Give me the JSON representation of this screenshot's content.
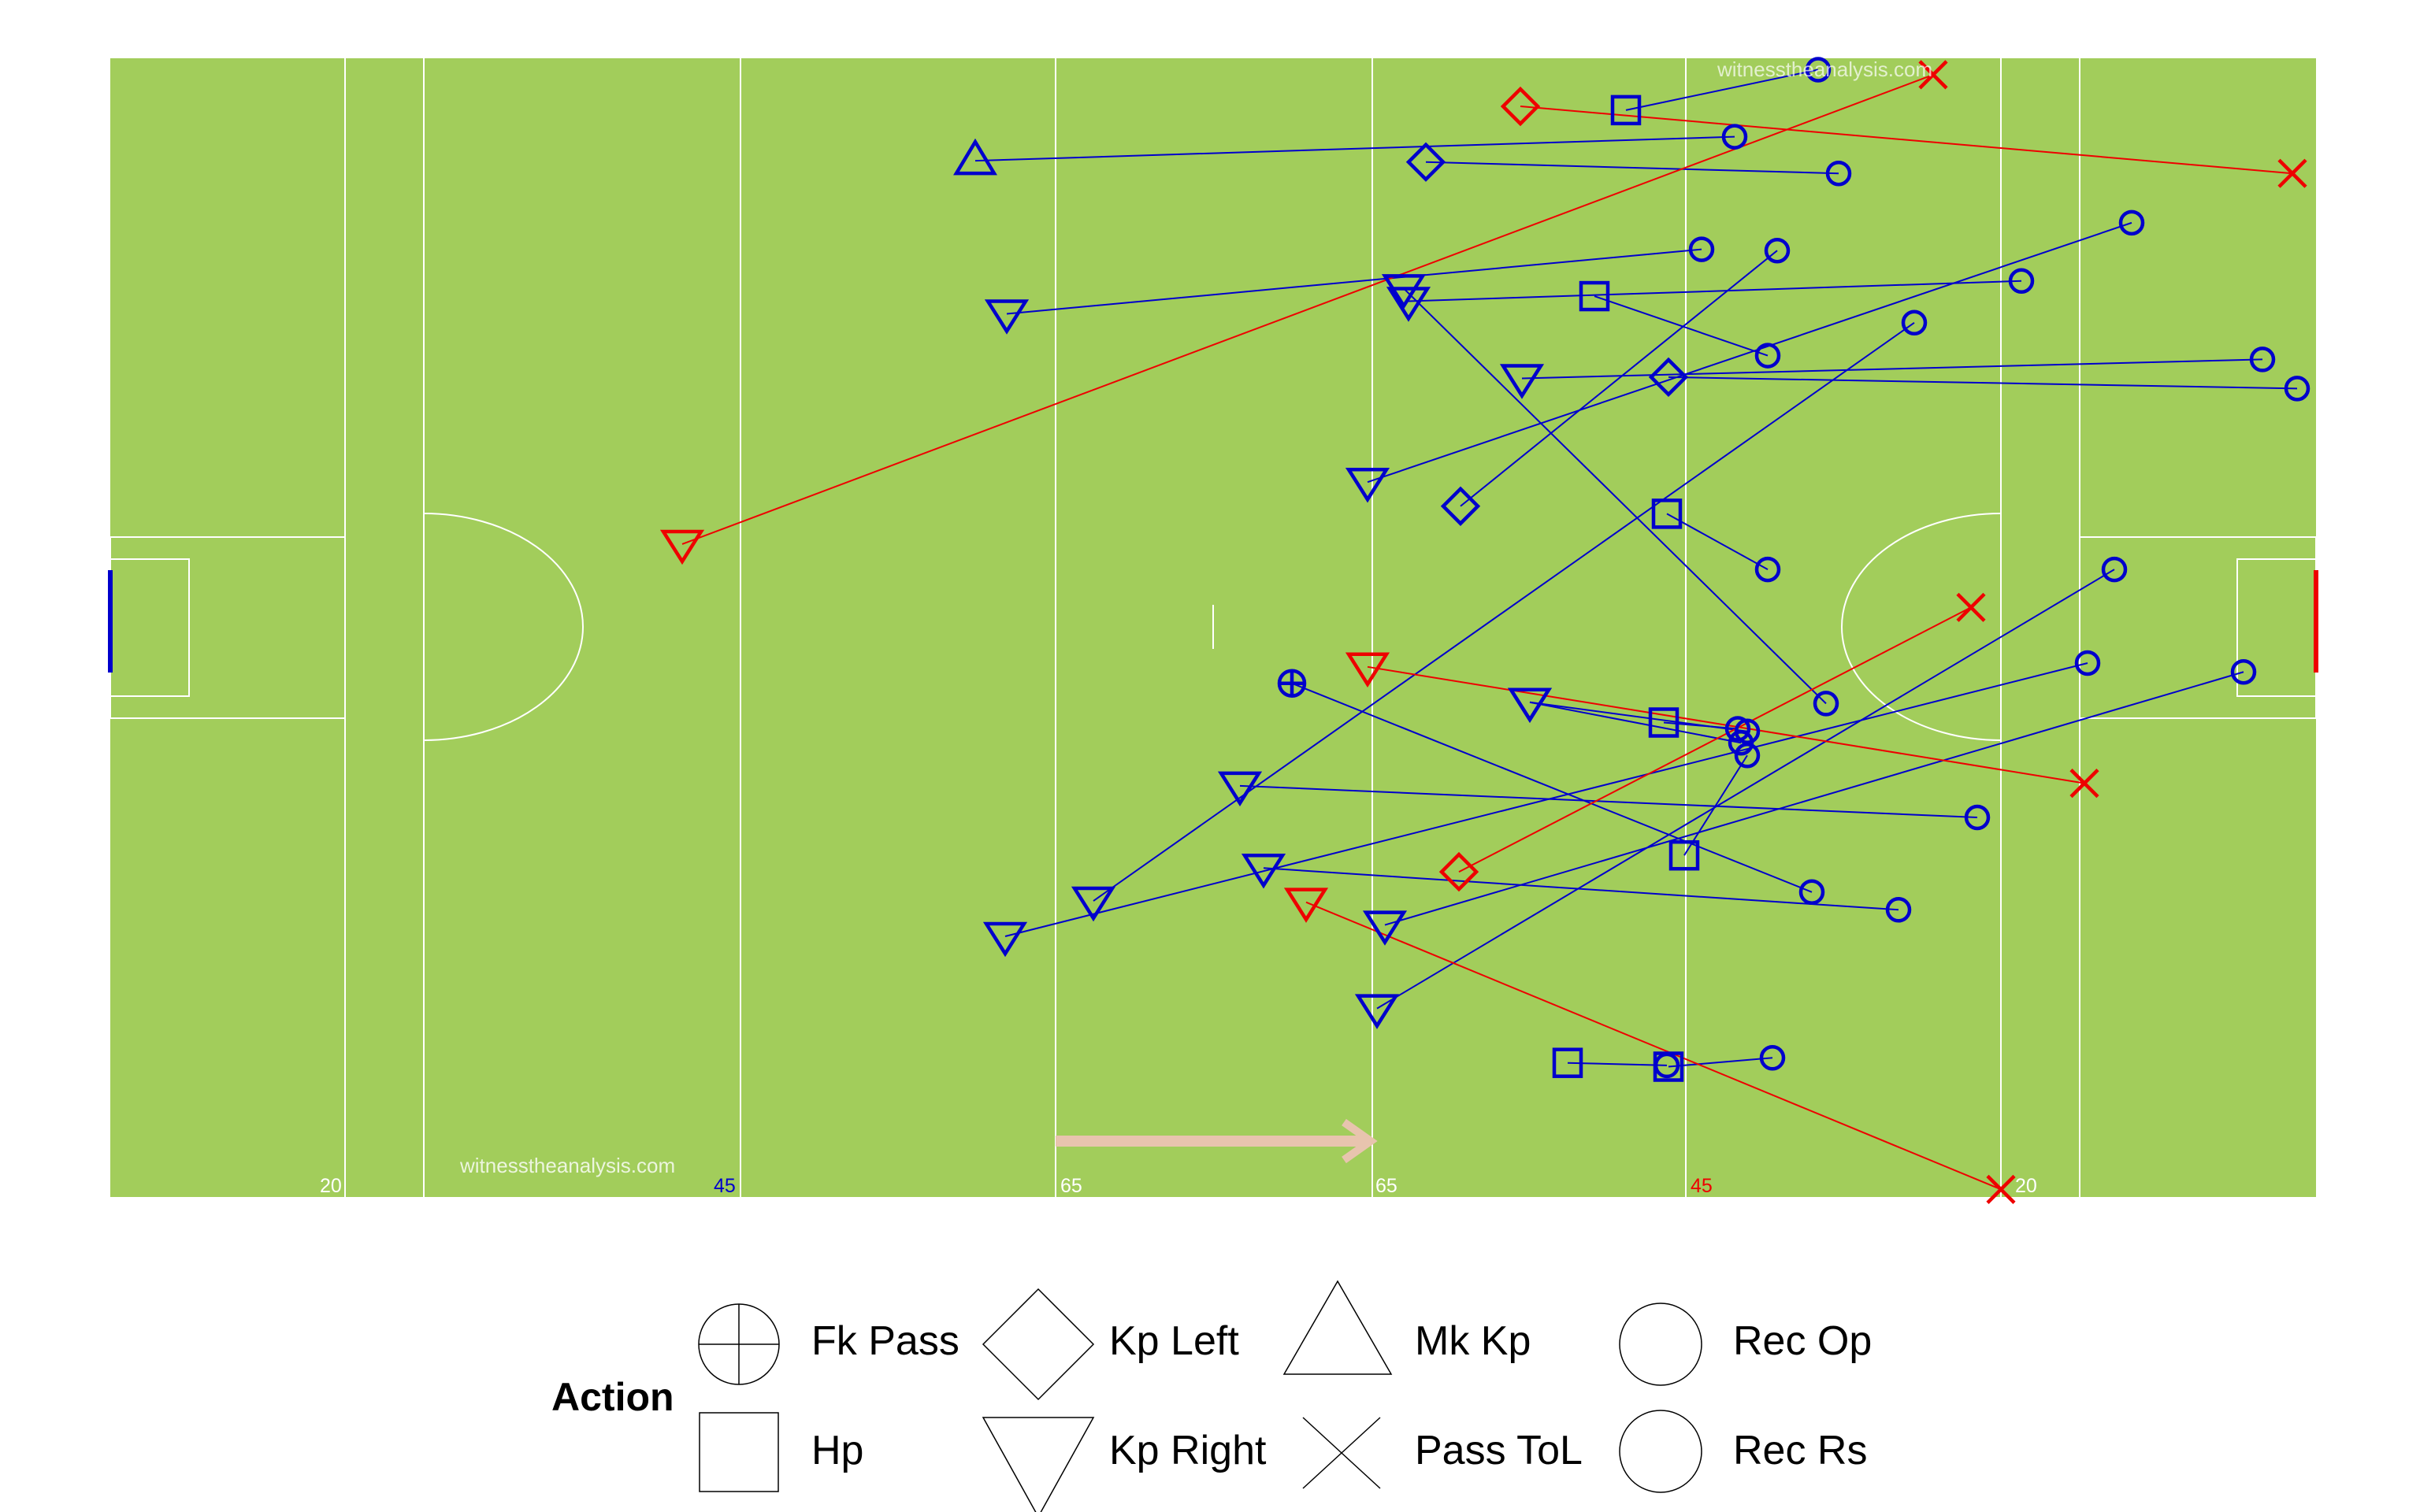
{
  "watermark": "witnesstheanalysis.com",
  "legend": {
    "title": "Action",
    "items": [
      {
        "key": "fk_pass",
        "label": "Fk Pass",
        "icon": "circle-plus-icon"
      },
      {
        "key": "hp",
        "label": "Hp",
        "icon": "square-icon"
      },
      {
        "key": "kp_left",
        "label": "Kp Left",
        "icon": "diamond-icon"
      },
      {
        "key": "kp_right",
        "label": "Kp Right",
        "icon": "triangle-down-icon"
      },
      {
        "key": "mk_kp",
        "label": "Mk Kp",
        "icon": "triangle-up-icon"
      },
      {
        "key": "pass_tol",
        "label": "Pass ToL",
        "icon": "cross-icon"
      },
      {
        "key": "rec_op",
        "label": "Rec Op",
        "icon": "circle-icon"
      },
      {
        "key": "rec_rs",
        "label": "Rec Rs",
        "icon": "circle-icon"
      }
    ]
  },
  "colors": {
    "pitch": "#a2cd5b",
    "team_blue": "#0000cc",
    "team_red": "#ee0000",
    "lines": "#ffffff",
    "arrow": "#e8c4ae"
  },
  "chart_data": {
    "type": "scatter",
    "title": "",
    "xlabel": "",
    "ylabel": "",
    "xlim": [
      0,
      140
    ],
    "ylim": [
      0,
      90
    ],
    "grid": false,
    "legend_position": "bottom",
    "pitch_labels": [
      {
        "x": 15,
        "text": "20",
        "color": "lines"
      },
      {
        "x": 40,
        "text": "45",
        "color": "team_blue"
      },
      {
        "x": 60,
        "text": "65",
        "color": "lines"
      },
      {
        "x": 80,
        "text": "65",
        "color": "lines"
      },
      {
        "x": 100,
        "text": "45",
        "color": "team_red"
      },
      {
        "x": 120,
        "text": "20",
        "color": "lines"
      }
    ],
    "direction_arrow": {
      "from": 60,
      "to": 80
    },
    "series": [
      {
        "team": "team_blue",
        "events": [
          {
            "start": "kp_right",
            "x1": 56.8,
            "y1": 20.6,
            "end": "rec_op",
            "x2": 125.5,
            "y2": 42.2
          },
          {
            "start": "kp_right",
            "x1": 62.4,
            "y1": 23.4,
            "end": "rec_op",
            "x2": 114.5,
            "y2": 69.1
          },
          {
            "start": "kp_right",
            "x1": 56.9,
            "y1": 69.8,
            "end": "rec_op",
            "x2": 101.0,
            "y2": 74.9
          },
          {
            "start": "kp_right",
            "x1": 73.2,
            "y1": 26.0,
            "end": "rec_op",
            "x2": 113.5,
            "y2": 22.7
          },
          {
            "start": "kp_right",
            "x1": 80.4,
            "y1": 14.9,
            "end": "rec_op",
            "x2": 127.2,
            "y2": 49.6
          },
          {
            "start": "kp_right",
            "x1": 82.4,
            "y1": 70.8,
            "end": "rec_op",
            "x2": 121.3,
            "y2": 72.4
          },
          {
            "start": "kp_right",
            "x1": 82.1,
            "y1": 71.8,
            "end": "rec_op",
            "x2": 108.9,
            "y2": 39.0
          },
          {
            "start": "kp_right",
            "x1": 89.6,
            "y1": 64.7,
            "end": "rec_op",
            "x2": 136.6,
            "y2": 66.2
          },
          {
            "start": "kp_right",
            "x1": 80.9,
            "y1": 21.5,
            "end": "rec_op",
            "x2": 135.4,
            "y2": 41.5
          },
          {
            "start": "kp_right",
            "x1": 71.7,
            "y1": 32.5,
            "end": "rec_op",
            "x2": 118.5,
            "y2": 30.0
          },
          {
            "start": "kp_right",
            "x1": 79.8,
            "y1": 56.5,
            "end": "rec_op",
            "x2": 128.3,
            "y2": 77.0
          },
          {
            "start": "mk_kp",
            "x1": 54.9,
            "y1": 81.9,
            "end": "rec_op",
            "x2": 103.1,
            "y2": 83.8
          },
          {
            "start": "kp_left",
            "x1": 83.5,
            "y1": 81.8,
            "end": "rec_op",
            "x2": 109.7,
            "y2": 80.9
          },
          {
            "start": "kp_left",
            "x1": 98.9,
            "y1": 64.8,
            "end": "rec_op",
            "x2": 138.8,
            "y2": 63.9
          },
          {
            "start": "kp_left",
            "x1": 85.7,
            "y1": 54.6,
            "end": "rec_op",
            "x2": 105.8,
            "y2": 74.8
          },
          {
            "start": "hp",
            "x1": 96.2,
            "y1": 85.9,
            "end": "rec_op",
            "x2": 108.4,
            "y2": 89.1
          },
          {
            "start": "hp",
            "x1": 94.2,
            "y1": 71.2,
            "end": "rec_op",
            "x2": 105.2,
            "y2": 66.5
          },
          {
            "start": "hp",
            "x1": 98.8,
            "y1": 54.0,
            "end": "rec_op",
            "x2": 105.2,
            "y2": 49.6
          },
          {
            "start": "hp",
            "x1": 98.6,
            "y1": 37.5,
            "end": "rec_op",
            "x2": 103.3,
            "y2": 37.0
          },
          {
            "start": "hp",
            "x1": 99.9,
            "y1": 27.0,
            "end": "rec_op",
            "x2": 103.9,
            "y2": 34.9
          },
          {
            "start": "hp",
            "x1": 92.5,
            "y1": 10.6,
            "end": "rec_op",
            "x2": 98.8,
            "y2": 10.4
          },
          {
            "start": "hp",
            "x1": 98.9,
            "y1": 10.3,
            "end": "rec_op",
            "x2": 105.5,
            "y2": 11.0
          },
          {
            "start": "fk_pass",
            "x1": 75.0,
            "y1": 40.6,
            "end": "rec_op",
            "x2": 108.0,
            "y2": 24.1
          },
          {
            "start": "kp_right",
            "x1": 90.1,
            "y1": 39.1,
            "end": "rec_op",
            "x2": 103.9,
            "y2": 36.8
          },
          {
            "start": "kp_right",
            "x1": 90.1,
            "y1": 39.1,
            "end": "rec_op",
            "x2": 103.5,
            "y2": 35.9
          }
        ]
      },
      {
        "team": "team_red",
        "events": [
          {
            "start": "kp_right",
            "x1": 36.3,
            "y1": 51.6,
            "end": "pass_tol",
            "x2": 115.7,
            "y2": 88.7
          },
          {
            "start": "kp_right",
            "x1": 79.8,
            "y1": 41.9,
            "end": "pass_tol",
            "x2": 125.3,
            "y2": 32.7
          },
          {
            "start": "kp_right",
            "x1": 75.9,
            "y1": 23.3,
            "end": "pass_tol",
            "x2": 120.0,
            "y2": 0.6
          },
          {
            "start": "kp_left",
            "x1": 85.6,
            "y1": 25.7,
            "end": "pass_tol",
            "x2": 118.1,
            "y2": 46.6
          },
          {
            "start": "kp_left",
            "x1": 89.5,
            "y1": 86.2,
            "end": "pass_tol",
            "x2": 138.5,
            "y2": 80.9
          }
        ]
      }
    ]
  }
}
